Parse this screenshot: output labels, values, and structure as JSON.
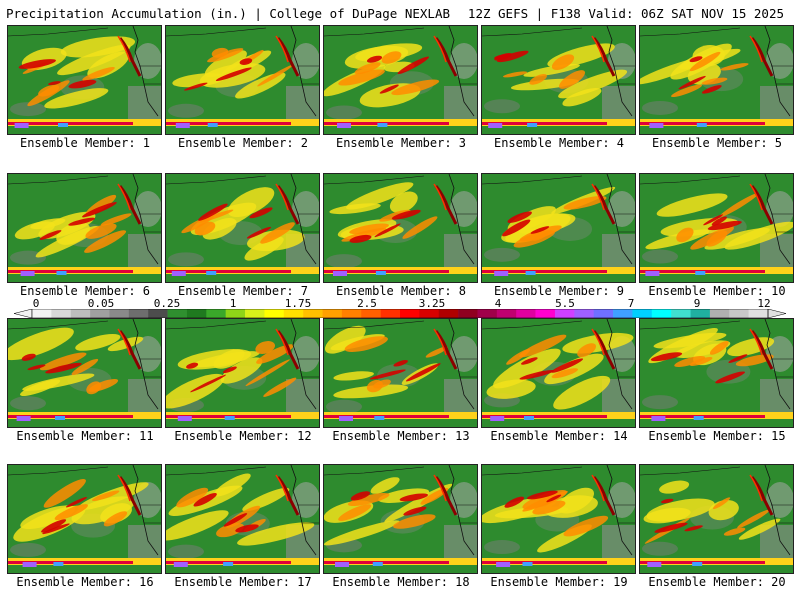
{
  "header": {
    "title_left": "Precipitation Accumulation (in.) | College of DuPage NEXLAB",
    "title_right": "12Z GEFS | F138 Valid: 06Z SAT NOV 15 2025"
  },
  "members": [
    {
      "label": "Ensemble Member: 1"
    },
    {
      "label": "Ensemble Member: 2"
    },
    {
      "label": "Ensemble Member: 3"
    },
    {
      "label": "Ensemble Member: 4"
    },
    {
      "label": "Ensemble Member: 5"
    },
    {
      "label": "Ensemble Member: 6"
    },
    {
      "label": "Ensemble Member: 7"
    },
    {
      "label": "Ensemble Member: 8"
    },
    {
      "label": "Ensemble Member: 9"
    },
    {
      "label": "Ensemble Member: 10"
    },
    {
      "label": "Ensemble Member: 11"
    },
    {
      "label": "Ensemble Member: 12"
    },
    {
      "label": "Ensemble Member: 13"
    },
    {
      "label": "Ensemble Member: 14"
    },
    {
      "label": "Ensemble Member: 15"
    },
    {
      "label": "Ensemble Member: 16"
    },
    {
      "label": "Ensemble Member: 17"
    },
    {
      "label": "Ensemble Member: 18"
    },
    {
      "label": "Ensemble Member: 19"
    },
    {
      "label": "Ensemble Member: 20"
    }
  ],
  "colorbar": {
    "tick_labels": [
      "0",
      "0.05",
      "0.25",
      "1",
      "1.75",
      "2.5",
      "3.25",
      "4",
      "5.5",
      "7",
      "9",
      "12"
    ],
    "colors": [
      "#f2f2f2",
      "#d9d9d9",
      "#bdbdbd",
      "#a0a0a0",
      "#8a8a8a",
      "#6e6e6e",
      "#4d4d4d",
      "#2f8f2f",
      "#1f7a1f",
      "#3aa82a",
      "#8fd418",
      "#d8f01a",
      "#ffff00",
      "#ffe000",
      "#ffc000",
      "#ffa000",
      "#ff8000",
      "#ff6000",
      "#ff3000",
      "#ff0000",
      "#d80000",
      "#b00000",
      "#900020",
      "#a0004a",
      "#c00070",
      "#e000a0",
      "#ff00d0",
      "#d040ff",
      "#a060ff",
      "#7070ff",
      "#40a0ff",
      "#00d0ff",
      "#00ffff",
      "#40e0d0",
      "#20b0a0",
      "#b0b0b0",
      "#c8c8c8",
      "#e0e0e0"
    ]
  }
}
